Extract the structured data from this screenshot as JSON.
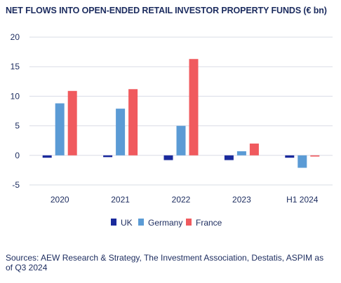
{
  "title": "NET FLOWS INTO OPEN-ENDED RETAIL INVESTOR PROPERTY FUNDS (€ bn)",
  "source": "Sources: AEW Research & Strategy, The Investment Association, Destatis, ASPIM as of Q3 2024",
  "chart_data": {
    "type": "bar",
    "title": "NET FLOWS INTO OPEN-ENDED RETAIL INVESTOR PROPERTY FUNDS (€ bn)",
    "categories": [
      "2020",
      "2021",
      "2022",
      "2023",
      "H1 2024"
    ],
    "series": [
      {
        "name": "UK",
        "color": "#1a2a9c",
        "values": [
          -0.4,
          -0.3,
          -0.8,
          -0.8,
          -0.4
        ]
      },
      {
        "name": "Germany",
        "color": "#5b9bd5",
        "values": [
          8.8,
          7.9,
          5.0,
          0.7,
          -2.1
        ]
      },
      {
        "name": "France",
        "color": "#f05a5e",
        "values": [
          10.9,
          11.2,
          16.3,
          2.0,
          -0.2
        ]
      }
    ],
    "ylim": [
      -5,
      20
    ],
    "yticks": [
      -5,
      0,
      5,
      10,
      15,
      20
    ],
    "grid": true,
    "legend_position": "bottom"
  }
}
